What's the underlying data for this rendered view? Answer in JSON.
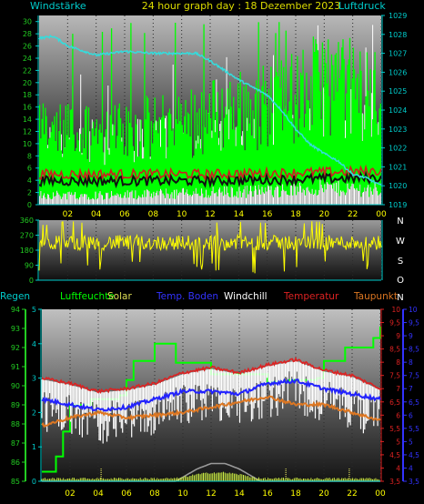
{
  "title": "24 hour graph day : 18 Dezember 2023",
  "colors": {
    "wind": "#00ff00",
    "gust": "#ffffff",
    "pressure": "#33dddd",
    "winddir": "#ffff00",
    "rain": "#33cc33",
    "humidity": "#00ff00",
    "solar": "#dddd55",
    "soiltemp": "#2222ff",
    "windchill": "#ffffff",
    "temperature": "#dd2222",
    "dewpoint": "#dd7722",
    "axis_cyan": "#00cccc",
    "axis_green": "#22cc22",
    "axis_red": "#dd2222",
    "axis_blue": "#3333ff"
  },
  "chart_data": [
    {
      "type": "line",
      "name": "wind-pressure",
      "left_axis_label": "Windstärke",
      "right_axis_label": "Luftdruck",
      "x_ticks": [
        "02",
        "04",
        "06",
        "08",
        "10",
        "12",
        "14",
        "16",
        "18",
        "20",
        "22",
        "00"
      ],
      "left_ticks": [
        0,
        2,
        4,
        6,
        8,
        10,
        12,
        14,
        16,
        18,
        20,
        22,
        24,
        26,
        28,
        30
      ],
      "right_ticks": [
        1019,
        1020,
        1021,
        1022,
        1023,
        1024,
        1025,
        1026,
        1027,
        1028,
        1029
      ],
      "ylim_left": [
        0,
        31
      ],
      "ylim_right": [
        1019,
        1029
      ],
      "series": [
        {
          "key": "gust",
          "profile": [
            [
              0,
              10
            ],
            [
              6,
              10
            ],
            [
              12,
              11
            ],
            [
              18,
              12
            ],
            [
              20,
              14
            ],
            [
              24,
              13
            ]
          ]
        },
        {
          "key": "wind",
          "profile": [
            [
              0,
              4
            ],
            [
              6,
              4
            ],
            [
              12,
              5
            ],
            [
              18,
              6
            ],
            [
              20,
              7
            ],
            [
              24,
              6
            ]
          ]
        },
        {
          "key": "temp_band",
          "profile": [
            [
              0,
              5
            ],
            [
              12,
              5
            ],
            [
              24,
              5.5
            ]
          ]
        },
        {
          "key": "pressure",
          "profile": [
            [
              0,
              1027.8
            ],
            [
              1,
              1027.9
            ],
            [
              2,
              1027.4
            ],
            [
              4,
              1026.9
            ],
            [
              6,
              1027.1
            ],
            [
              8,
              1027.0
            ],
            [
              11,
              1027.0
            ],
            [
              12,
              1026.6
            ],
            [
              14,
              1025.6
            ],
            [
              16,
              1024.8
            ],
            [
              17,
              1024.0
            ],
            [
              18,
              1023.0
            ],
            [
              19,
              1022.2
            ],
            [
              20,
              1021.7
            ],
            [
              21,
              1021.3
            ],
            [
              22,
              1020.6
            ],
            [
              23,
              1020.4
            ],
            [
              24,
              1020.0
            ]
          ]
        }
      ]
    },
    {
      "type": "line",
      "name": "wind-direction",
      "left_ticks": [
        0,
        90,
        180,
        270,
        360
      ],
      "right_labels": [
        "N",
        "W",
        "S",
        "O",
        "N"
      ],
      "ylim": [
        0,
        360
      ],
      "series": [
        {
          "key": "winddir",
          "mean": 225
        }
      ]
    },
    {
      "type": "line",
      "name": "temperature-humidity",
      "legend": [
        "Regen",
        "Luftfeuchte",
        "Solar",
        "Temp. Boden",
        "Windchill",
        "Temperatur",
        "Taupunkt"
      ],
      "x_ticks": [
        "02",
        "04",
        "06",
        "08",
        "10",
        "12",
        "14",
        "16",
        "18",
        "20",
        "22",
        "00"
      ],
      "rain_ticks": [
        0,
        1,
        2,
        3,
        4,
        5
      ],
      "humidity_ticks": [
        85,
        86,
        87,
        88,
        89,
        90,
        91,
        92,
        93,
        94
      ],
      "temp_ticks": [
        "3,5",
        "4",
        "4,5",
        "5",
        "5,5",
        "6",
        "6,5",
        "7",
        "7,5",
        "8",
        "8,5",
        "9",
        "9,5",
        "10"
      ],
      "soil_ticks": [
        "3,5",
        "4",
        "4,5",
        "5",
        "5,5",
        "6",
        "6,5",
        "7",
        "7,5",
        "8",
        "8,5",
        "9",
        "9,5",
        "10"
      ],
      "ylim_humidity": [
        85,
        94
      ],
      "ylim_temp": [
        3.5,
        10
      ],
      "series": [
        {
          "key": "humidity",
          "points": [
            [
              0,
              85.5
            ],
            [
              1.0,
              86.3
            ],
            [
              1.5,
              87.6
            ],
            [
              2.0,
              89.0
            ],
            [
              3.5,
              89.3
            ],
            [
              5.5,
              89.5
            ],
            [
              6.0,
              90.3
            ],
            [
              6.5,
              91.3
            ],
            [
              8.0,
              92.2
            ],
            [
              9.5,
              91.2
            ],
            [
              12.0,
              90.6
            ],
            [
              16.0,
              90.2
            ],
            [
              17.5,
              90.3
            ],
            [
              19.5,
              90.4
            ],
            [
              20.0,
              91.3
            ],
            [
              21.5,
              92.0
            ],
            [
              23.5,
              92.5
            ],
            [
              24,
              93.1
            ]
          ]
        },
        {
          "key": "temperature",
          "points": [
            [
              0,
              7.4
            ],
            [
              2,
              7.2
            ],
            [
              4,
              6.9
            ],
            [
              6,
              7.0
            ],
            [
              8,
              7.2
            ],
            [
              10,
              7.6
            ],
            [
              12,
              7.8
            ],
            [
              14,
              7.6
            ],
            [
              16,
              7.9
            ],
            [
              18,
              8.1
            ],
            [
              20,
              7.7
            ],
            [
              22,
              7.5
            ],
            [
              24,
              7.0
            ]
          ]
        },
        {
          "key": "soiltemp",
          "points": [
            [
              0,
              6.6
            ],
            [
              2,
              6.4
            ],
            [
              4,
              6.2
            ],
            [
              6,
              6.3
            ],
            [
              8,
              6.6
            ],
            [
              10,
              6.9
            ],
            [
              12,
              6.9
            ],
            [
              14,
              6.8
            ],
            [
              16,
              7.2
            ],
            [
              18,
              7.3
            ],
            [
              20,
              7.0
            ],
            [
              22,
              6.8
            ],
            [
              24,
              6.6
            ]
          ]
        },
        {
          "key": "dewpoint",
          "points": [
            [
              0,
              5.6
            ],
            [
              2,
              5.9
            ],
            [
              4,
              6.1
            ],
            [
              6,
              5.9
            ],
            [
              8,
              6.0
            ],
            [
              10,
              6.1
            ],
            [
              12,
              6.3
            ],
            [
              14,
              6.5
            ],
            [
              16,
              6.7
            ],
            [
              18,
              6.4
            ],
            [
              20,
              6.4
            ],
            [
              22,
              6.1
            ],
            [
              24,
              5.8
            ]
          ]
        },
        {
          "key": "solar",
          "points": [
            [
              0,
              0
            ],
            [
              9.5,
              0
            ],
            [
              10,
              0.15
            ],
            [
              11,
              0.45
            ],
            [
              12,
              0.65
            ],
            [
              13,
              0.65
            ],
            [
              14,
              0.45
            ],
            [
              15,
              0.15
            ],
            [
              15.5,
              0
            ],
            [
              24,
              0
            ]
          ]
        }
      ]
    }
  ]
}
